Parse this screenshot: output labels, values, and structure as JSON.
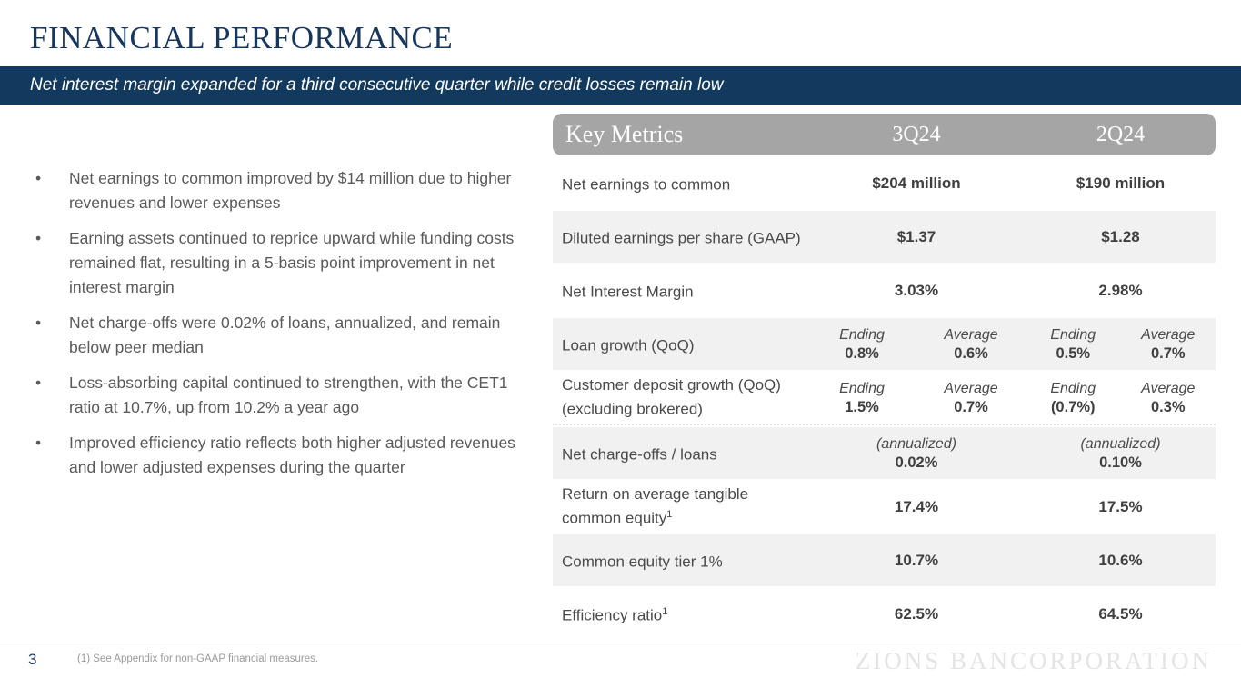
{
  "slide": {
    "title": "FINANCIAL PERFORMANCE",
    "banner": "Net interest margin expanded for a third consecutive quarter while credit losses remain low",
    "page_number": "3",
    "footnote": "(1) See Appendix for non-GAAP financial measures.",
    "watermark": "ZIONS BANCORPORATION"
  },
  "colors": {
    "navy": "#123a5f",
    "header_gray": "#a5a5a5",
    "row_gray": "#f1f1f1",
    "body_text_gray": "#595959"
  },
  "bullets": [
    "Net earnings to common improved by $14 million due to higher revenues and lower expenses",
    "Earning assets continued to reprice upward while funding costs remained flat, resulting in a 5-basis point improvement in net interest margin",
    "Net charge-offs were 0.02% of loans, annualized, and remain below peer median",
    "Loss-absorbing capital continued to strengthen, with the CET1 ratio at 10.7%, up from 10.2% a year ago",
    "Improved efficiency ratio reflects both higher adjusted revenues and lower adjusted expenses during the quarter"
  ],
  "table": {
    "title": "Key Metrics",
    "columns": [
      "3Q24",
      "2Q24"
    ],
    "rows": [
      {
        "label": "Net earnings to common",
        "q1": "$204 million",
        "q2": "$190 million"
      },
      {
        "label": "Diluted earnings per share (GAAP)",
        "q1": "$1.37",
        "q2": "$1.28"
      },
      {
        "label": "Net Interest Margin",
        "q1": "3.03%",
        "q2": "2.98%"
      },
      {
        "label": "Loan growth (QoQ)",
        "q1a_label": "Ending",
        "q1a": "0.8%",
        "q1b_label": "Average",
        "q1b": "0.6%",
        "q2a_label": "Ending",
        "q2a": "0.5%",
        "q2b_label": "Average",
        "q2b": "0.7%"
      },
      {
        "label": "Customer deposit growth (QoQ) (excluding brokered)",
        "q1a_label": "Ending",
        "q1a": "1.5%",
        "q1b_label": "Average",
        "q1b": "0.7%",
        "q2a_label": "Ending",
        "q2a": "(0.7%)",
        "q2b_label": "Average",
        "q2b": "0.3%"
      },
      {
        "label": "Net charge-offs / loans",
        "q1_note": "(annualized)",
        "q1": "0.02%",
        "q2_note": "(annualized)",
        "q2": "0.10%"
      },
      {
        "label": "Return on average tangible common equity",
        "label_sup": "1",
        "q1": "17.4%",
        "q2": "17.5%"
      },
      {
        "label": "Common equity tier 1%",
        "q1": "10.7%",
        "q2": "10.6%"
      },
      {
        "label": "Efficiency ratio",
        "label_sup": "1",
        "q1": "62.5%",
        "q2": "64.5%"
      }
    ]
  }
}
